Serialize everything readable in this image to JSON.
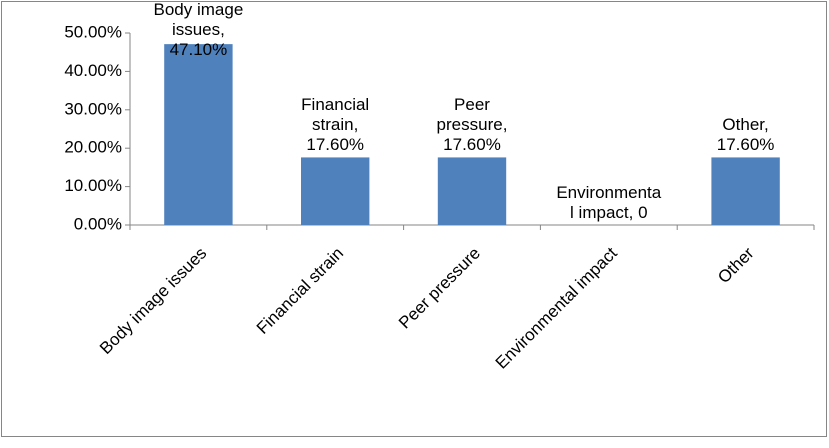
{
  "chart_data": {
    "type": "bar",
    "categories": [
      "Body image issues",
      "Financial strain",
      "Peer pressure",
      "Environmental impact",
      "Other"
    ],
    "values": [
      47.1,
      17.6,
      17.6,
      0,
      17.6
    ],
    "value_labels": [
      "Body image issues, 47.10%",
      "Financial strain, 17.60%",
      "Peer pressure, 17.60%",
      "Environmental impact, 0",
      "Other, 17.60%"
    ],
    "color": "#4f81bd",
    "ylim": [
      0,
      50
    ],
    "yticks": [
      {
        "value": 0,
        "label": "0.00%"
      },
      {
        "value": 10,
        "label": "10.00%"
      },
      {
        "value": 20,
        "label": "20.00%"
      },
      {
        "value": 30,
        "label": "30.00%"
      },
      {
        "value": 40,
        "label": "40.00%"
      },
      {
        "value": 50,
        "label": "50.00%"
      }
    ],
    "grid": false
  }
}
